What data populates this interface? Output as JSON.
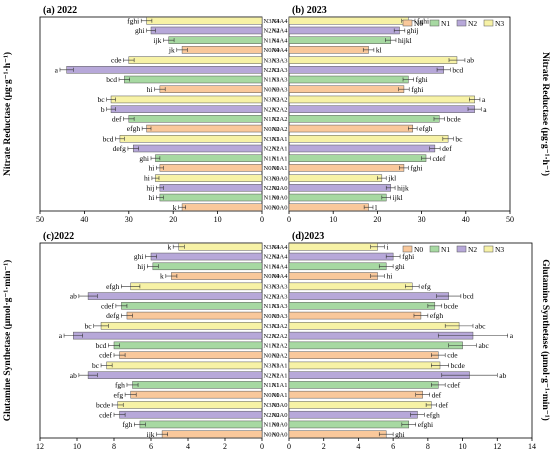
{
  "colors": {
    "N0": "#f9c89b",
    "N1": "#a7d9a2",
    "N2": "#b7a8d9",
    "N3": "#f7f2a6"
  },
  "treatment_order_top_to_bottom": [
    "N3A4",
    "N2A4",
    "N1A4",
    "N0A4",
    "N3A3",
    "N2A3",
    "N1A3",
    "N0A3",
    "N3A2",
    "N2A2",
    "N1A2",
    "N0A2",
    "N3A1",
    "N2A1",
    "N1A1",
    "N0A1",
    "N3A0",
    "N2A0",
    "N1A0",
    "N0A0"
  ],
  "chart_data": [
    {
      "id": "a",
      "type": "bar",
      "orientation": "horizontal",
      "title": "(a) 2022",
      "ylabel": "Nitrate Reductase (μg·g⁻¹·h⁻¹)",
      "xlim": [
        0,
        50
      ],
      "xdir": "reversed",
      "xticks": [
        0,
        10,
        20,
        30,
        40,
        50
      ],
      "values": [
        26,
        25,
        21,
        18,
        30,
        44,
        31,
        23,
        34,
        34,
        30,
        26,
        32,
        29,
        24,
        23,
        24,
        23,
        23,
        18
      ],
      "errors": [
        1.2,
        1.0,
        1.2,
        1.2,
        1.2,
        1.5,
        1.2,
        1.2,
        1.0,
        1.0,
        1.2,
        1.0,
        1.0,
        1.2,
        1.0,
        0.8,
        0.8,
        0.8,
        0.8,
        0.8
      ],
      "letters": [
        "fghi",
        "ghi",
        "ijk",
        "jk",
        "cde",
        "a",
        "bcd",
        "hi",
        "bc",
        "b",
        "def",
        "efgh",
        "bcd",
        "defg",
        "ghi",
        "hi",
        "hi",
        "hij",
        "hi",
        "k"
      ]
    },
    {
      "id": "b",
      "type": "bar",
      "orientation": "horizontal",
      "title": "(b) 2023",
      "legend": [
        "N0",
        "N1",
        "N2",
        "N3"
      ],
      "legend_position": "top-right",
      "xlim": [
        0,
        50
      ],
      "xticks": [
        0,
        10,
        20,
        30,
        40,
        50
      ],
      "values": [
        27,
        25,
        23,
        18,
        38,
        35,
        27,
        26,
        42,
        42,
        34,
        28,
        36,
        33,
        31,
        26,
        21,
        23,
        22,
        18
      ],
      "errors": [
        1.5,
        1.2,
        1.2,
        1.2,
        1.8,
        1.5,
        1.2,
        1.2,
        1.2,
        1.5,
        1.2,
        1.0,
        1.2,
        1.2,
        1.0,
        1.0,
        1.0,
        1.0,
        1.0,
        1.0
      ],
      "letters": [
        "fghi",
        "ghij",
        "hijkl",
        "kl",
        "ab",
        "bcd",
        "fghi",
        "fghi",
        "a",
        "a",
        "bcde",
        "efgh",
        "bc",
        "def",
        "cdef",
        "fghi",
        "jkl",
        "hijk",
        "ijkl",
        "l"
      ]
    },
    {
      "id": "c",
      "type": "bar",
      "orientation": "horizontal",
      "title": "(c)2022",
      "ylabel": "Glutamine Synthetase (μmol·g⁻¹·min⁻¹)",
      "xlim": [
        0,
        12
      ],
      "xdir": "reversed",
      "xticks": [
        0,
        2,
        4,
        6,
        8,
        10,
        12
      ],
      "values": [
        4.5,
        6.0,
        5.9,
        4.9,
        7.1,
        9.4,
        7.6,
        7.3,
        8.7,
        10.2,
        8.0,
        7.7,
        8.4,
        9.4,
        7.0,
        7.1,
        7.8,
        7.7,
        6.6,
        5.4
      ],
      "errors": [
        0.3,
        0.3,
        0.3,
        0.3,
        0.5,
        0.5,
        0.3,
        0.3,
        0.4,
        0.5,
        0.3,
        0.3,
        0.3,
        0.5,
        0.3,
        0.3,
        0.3,
        0.3,
        0.3,
        0.3
      ],
      "letters": [
        "k",
        "ghi",
        "hij",
        "k",
        "efgh",
        "ab",
        "cdef",
        "defg",
        "bc",
        "a",
        "bcd",
        "cdef",
        "bc",
        "ab",
        "fgh",
        "efg",
        "bcde",
        "cdef",
        "fgh",
        "ijk"
      ]
    },
    {
      "id": "d",
      "type": "bar",
      "orientation": "horizontal",
      "title": "(d)2023",
      "legend": [
        "N0",
        "N1",
        "N2",
        "N3"
      ],
      "legend_position": "top-right",
      "xlim": [
        0,
        14
      ],
      "xticks": [
        0,
        2,
        4,
        6,
        8,
        10,
        12,
        14
      ],
      "values": [
        5.1,
        6.0,
        5.6,
        5.1,
        7.1,
        9.2,
        8.4,
        7.6,
        9.8,
        10.6,
        10.0,
        8.6,
        8.7,
        10.4,
        8.6,
        7.7,
        8.2,
        7.4,
        6.9,
        5.6
      ],
      "errors": [
        0.4,
        0.4,
        0.4,
        0.4,
        0.4,
        0.7,
        0.4,
        0.4,
        0.8,
        2.0,
        0.8,
        0.4,
        0.5,
        1.6,
        0.4,
        0.4,
        0.3,
        0.4,
        0.4,
        0.4
      ],
      "letters": [
        "i",
        "fghi",
        "ghi",
        "hi",
        "efg",
        "bcd",
        "bcde",
        "efgh",
        "abc",
        "a",
        "abc",
        "cde",
        "bcde",
        "ab",
        "cdef",
        "def",
        "def",
        "efgh",
        "efghi",
        "ghi"
      ]
    }
  ]
}
